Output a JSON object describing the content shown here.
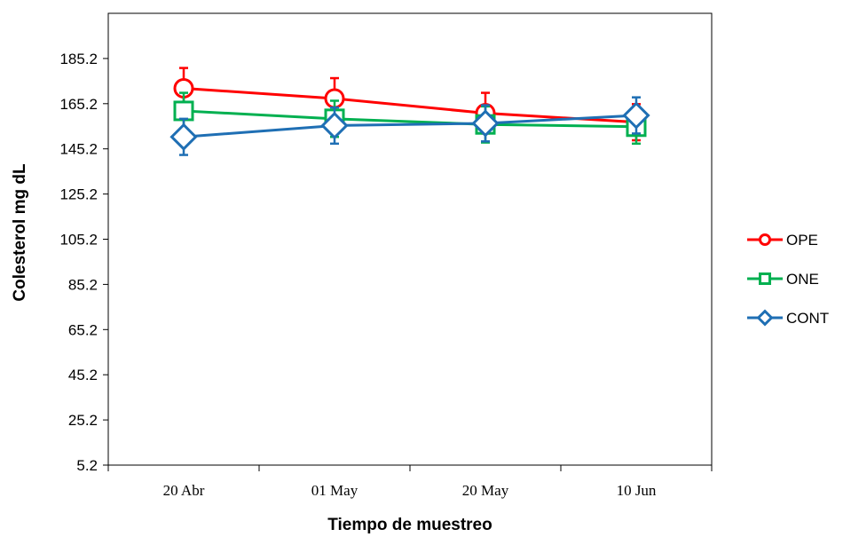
{
  "chart_data": {
    "type": "line",
    "xlabel": "Tiempo de muestreo",
    "ylabel": "Colesterol mg dL",
    "categories": [
      "20 Abr",
      "01 May",
      "20 May",
      "10 Jun"
    ],
    "ylim": [
      5.2,
      205.2
    ],
    "yticks": [
      5.2,
      25.2,
      45.2,
      65.2,
      85.2,
      105.2,
      125.2,
      145.2,
      165.2,
      185.2
    ],
    "ytick_labels": [
      "5.2",
      "25.2",
      "45.2",
      "65.2",
      "85.2",
      "105.2",
      "125.2",
      "145.2",
      "165.2",
      "185.2"
    ],
    "grid": false,
    "legend_position": "right",
    "series": [
      {
        "name": "OPE",
        "color": "#ff0000",
        "marker": "circle",
        "values": [
          172,
          167.5,
          161,
          157
        ],
        "errors": [
          9,
          9,
          9,
          8
        ]
      },
      {
        "name": "ONE",
        "color": "#00b050",
        "marker": "square",
        "values": [
          162,
          158.5,
          156,
          155
        ],
        "errors": [
          8,
          8,
          8,
          7.5
        ]
      },
      {
        "name": "CONT",
        "color": "#1f6fb4",
        "marker": "diamond",
        "values": [
          150.5,
          155.5,
          156.5,
          160
        ],
        "errors": [
          8,
          8,
          8,
          8
        ]
      }
    ]
  }
}
